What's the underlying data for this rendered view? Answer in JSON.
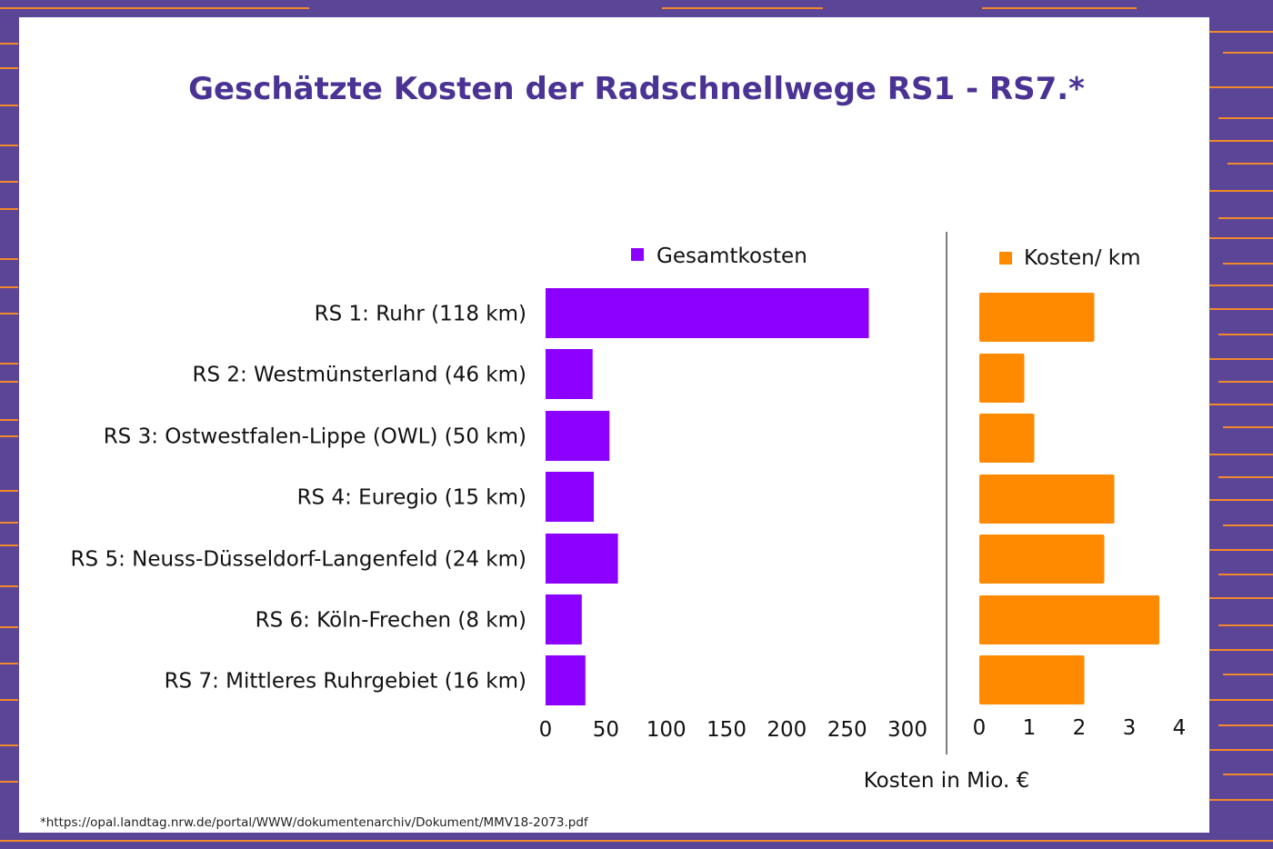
{
  "title": "Geschätzte Kosten der Radschnellwege RS1 - RS7.*",
  "footnote": "*https://opal.landtag.nrw.de/portal/WWW/dokumentenarchiv/Dokument/MMV18-2073.pdf",
  "colors": {
    "background": "#5b4596",
    "stripes": "#f2892b",
    "card": "#ffffff",
    "title": "#4a3394",
    "series_total": "#8b00ff",
    "series_per_km": "#ff8a00",
    "divider": "#555555"
  },
  "chart_data": [
    {
      "type": "bar",
      "orientation": "horizontal",
      "legend": "Gesamtkosten",
      "categories": [
        "RS 1: Ruhr (118 km)",
        "RS 2: Westmünsterland (46 km)",
        "RS 3: Ostwestfalen-Lippe (OWL) (50 km)",
        "RS 4: Euregio (15 km)",
        "RS 5: Neuss-Düsseldorf-Langenfeld (24 km)",
        "RS 6: Köln-Frechen (8 km)",
        "RS 7: Mittleres Ruhrgebiet (16 km)"
      ],
      "values": [
        268,
        39,
        53,
        40,
        60,
        30,
        33
      ],
      "xlim": [
        0,
        300
      ],
      "ticks": [
        "0",
        "50",
        "100",
        "150",
        "200",
        "250",
        "300"
      ]
    },
    {
      "type": "bar",
      "orientation": "horizontal",
      "legend": "Kosten/ km",
      "values": [
        2.3,
        0.9,
        1.1,
        2.7,
        2.5,
        3.6,
        2.1
      ],
      "xlim": [
        0,
        4
      ],
      "ticks": [
        "0",
        "1",
        "2",
        "3",
        "4"
      ]
    }
  ],
  "xlabel": "Kosten in Mio. €"
}
